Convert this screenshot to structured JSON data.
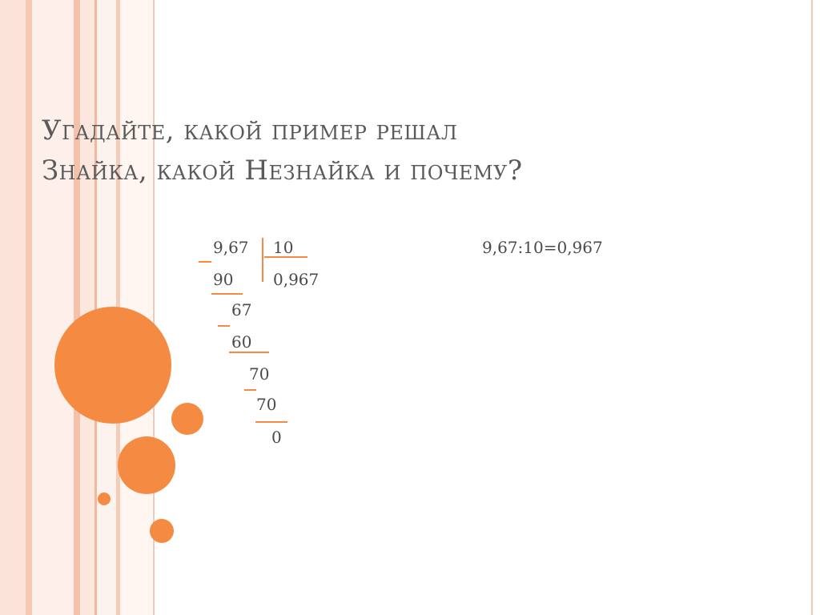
{
  "title": {
    "line1": "Угадайте, какой пример решал",
    "line2": "Знайка, какой Незнайка и почему?"
  },
  "division": {
    "dividend": "9,67",
    "divisor": "10",
    "sub1": "90",
    "quotient": "0,967",
    "rem1": "67",
    "sub2": "60",
    "rem2": "70",
    "sub3": "70",
    "rem3": "0"
  },
  "equation": "9,67:10=0,967",
  "colors": {
    "accent": "#f58a42",
    "title_text": "#5a5a5a",
    "line": "#f58a42"
  }
}
